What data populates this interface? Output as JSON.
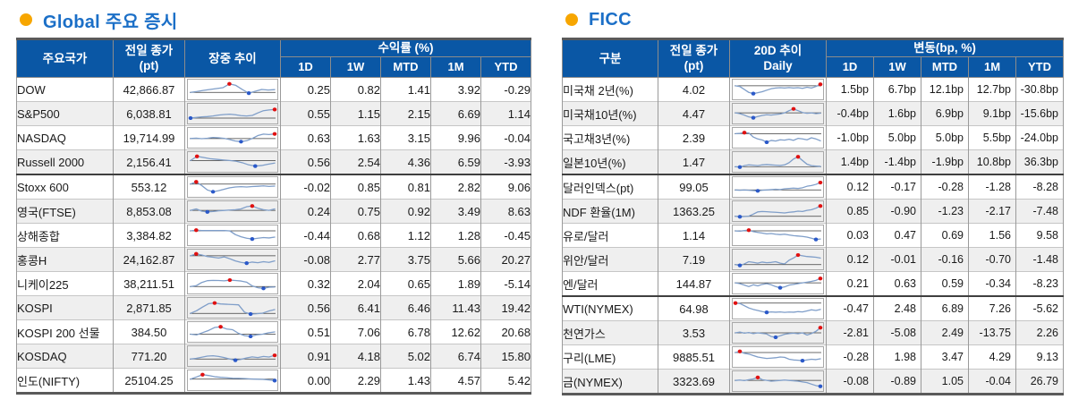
{
  "colors": {
    "header_bg": "#0A57A5",
    "title_text": "#1B6FC7",
    "bullet": "#F7A600",
    "negative": "#FE0000",
    "spark_line": "#7F9EC9",
    "spark_ref": "#3A3A3A",
    "marker_high": "#E01010",
    "marker_low": "#2B59C9"
  },
  "sections": [
    {
      "title": "Global 주요 증시",
      "header": {
        "col1": "주요국가",
        "col2_line1": "전일 종가",
        "col2_line2": "(pt)",
        "col3_line1": "장중 추이",
        "col3_line2": "",
        "group": "수익률 (%)",
        "cols": [
          "1D",
          "1W",
          "MTD",
          "1M",
          "YTD"
        ]
      },
      "rows": [
        {
          "name": "DOW",
          "close": "42,866.87",
          "values": [
            "0.25",
            "0.82",
            "1.41",
            "3.92",
            "-0.29"
          ],
          "sep": false,
          "spark": [
            30,
            36,
            44,
            50,
            56,
            62,
            88,
            78,
            50,
            25,
            38,
            50,
            46,
            49
          ]
        },
        {
          "name": "S&P500",
          "close": "6,038.81",
          "values": [
            "0.55",
            "1.15",
            "2.15",
            "6.69",
            "1.14"
          ],
          "sep": false,
          "spark": [
            20,
            24,
            28,
            30,
            34,
            40,
            44,
            46,
            42,
            36,
            34,
            38,
            55,
            70,
            75,
            78
          ]
        },
        {
          "name": "NASDAQ",
          "close": "19,714.99",
          "values": [
            "0.63",
            "1.63",
            "3.15",
            "9.96",
            "-0.04"
          ],
          "sep": false,
          "spark": [
            45,
            48,
            44,
            47,
            52,
            50,
            46,
            38,
            28,
            24,
            30,
            45,
            65,
            75,
            72,
            76
          ]
        },
        {
          "name": "Russell 2000",
          "close": "2,156.41",
          "values": [
            "0.56",
            "2.54",
            "4.36",
            "6.59",
            "-3.93"
          ],
          "sep": false,
          "spark": [
            60,
            88,
            80,
            72,
            68,
            64,
            60,
            55,
            45,
            30,
            22,
            26,
            35,
            42
          ]
        },
        {
          "name": "Stoxx 600",
          "close": "553.12",
          "values": [
            "-0.02",
            "0.85",
            "0.81",
            "2.82",
            "9.06"
          ],
          "sep": true,
          "spark": [
            70,
            85,
            60,
            30,
            18,
            25,
            35,
            45,
            50,
            52,
            50,
            53,
            55,
            58,
            54,
            56
          ]
        },
        {
          "name": "영국(FTSE)",
          "close": "8,853.08",
          "values": [
            "0.24",
            "0.75",
            "0.92",
            "3.49",
            "8.63"
          ],
          "sep": false,
          "spark": [
            55,
            65,
            50,
            45,
            48,
            52,
            55,
            58,
            60,
            65,
            80,
            85,
            70,
            60,
            55,
            65
          ]
        },
        {
          "name": "상해종합",
          "close": "3,384.82",
          "values": [
            "-0.44",
            "0.68",
            "1.12",
            "1.28",
            "-0.45"
          ],
          "sep": false,
          "spark": [
            80,
            85,
            82,
            83,
            82,
            83,
            82,
            80,
            55,
            40,
            30,
            25,
            30,
            35,
            32,
            38
          ]
        },
        {
          "name": "홍콩H",
          "close": "24,162.87",
          "values": [
            "-0.08",
            "2.77",
            "3.75",
            "5.66",
            "20.27"
          ],
          "sep": false,
          "spark": [
            75,
            88,
            80,
            70,
            65,
            60,
            68,
            55,
            40,
            30,
            25,
            32,
            28,
            35,
            30,
            40
          ]
        },
        {
          "name": "니케이225",
          "close": "38,211.51",
          "values": [
            "0.32",
            "2.04",
            "0.65",
            "1.89",
            "-5.14"
          ],
          "sep": false,
          "spark": [
            30,
            36,
            58,
            70,
            72,
            71,
            69,
            74,
            71,
            68,
            60,
            35,
            22,
            18,
            26,
            27
          ]
        },
        {
          "name": "KOSPI",
          "close": "2,871.85",
          "values": [
            "0.56",
            "6.41",
            "6.46",
            "11.43",
            "19.42"
          ],
          "sep": false,
          "spark": [
            12,
            30,
            55,
            78,
            82,
            76,
            74,
            72,
            70,
            20,
            8,
            10,
            14,
            28,
            38
          ]
        },
        {
          "name": "KOSPI 200 선물",
          "close": "384.50",
          "values": [
            "0.51",
            "7.06",
            "6.78",
            "12.62",
            "20.68"
          ],
          "sep": false,
          "spark": [
            35,
            30,
            45,
            60,
            80,
            85,
            70,
            65,
            40,
            25,
            20,
            30,
            35,
            45,
            50
          ]
        },
        {
          "name": "KOSDAQ",
          "close": "771.20",
          "values": [
            "0.91",
            "4.18",
            "5.02",
            "6.74",
            "15.80"
          ],
          "sep": false,
          "spark": [
            30,
            35,
            42,
            50,
            52,
            48,
            40,
            30,
            22,
            28,
            38,
            45,
            40,
            48,
            44,
            55
          ]
        },
        {
          "name": "인도(NIFTY)",
          "close": "25104.25",
          "values": [
            "0.00",
            "2.29",
            "1.43",
            "4.57",
            "5.42"
          ],
          "sep": false,
          "spark": [
            58,
            72,
            88,
            82,
            74,
            70,
            67,
            64,
            63,
            61,
            59,
            57,
            56,
            52,
            48
          ]
        }
      ]
    },
    {
      "title": "FICC",
      "header": {
        "col1": "구분",
        "col2_line1": "전일 종가",
        "col2_line2": "(pt)",
        "col3_line1": "20D 추이",
        "col3_line2": "Daily",
        "group": "변동(bp, %)",
        "cols": [
          "1D",
          "1W",
          "MTD",
          "1M",
          "YTD"
        ]
      },
      "rows": [
        {
          "name": "미국채 2년(%)",
          "close": "4.02",
          "values": [
            "1.5bp",
            "6.7bp",
            "12.1bp",
            "12.7bp",
            "-30.8bp"
          ],
          "sep": false,
          "spark": [
            75,
            70,
            50,
            30,
            22,
            28,
            35,
            45,
            55,
            60,
            62,
            60,
            63,
            60,
            62,
            58,
            65,
            60,
            70,
            85
          ]
        },
        {
          "name": "미국채10년(%)",
          "close": "4.47",
          "values": [
            "-0.4bp",
            "1.6bp",
            "6.9bp",
            "9.1bp",
            "-15.6bp"
          ],
          "sep": false,
          "spark": [
            55,
            50,
            40,
            28,
            22,
            30,
            38,
            42,
            40,
            44,
            48,
            55,
            70,
            82,
            70,
            58,
            52,
            55,
            50,
            53
          ]
        },
        {
          "name": "국고채3년(%)",
          "close": "2.39",
          "values": [
            "-1.0bp",
            "5.0bp",
            "5.0bp",
            "5.5bp",
            "-24.0bp"
          ],
          "sep": false,
          "spark": [
            78,
            80,
            85,
            83,
            55,
            42,
            35,
            20,
            32,
            28,
            36,
            34,
            40,
            33,
            46,
            42,
            36,
            50,
            42,
            30
          ]
        },
        {
          "name": "일본10년(%)",
          "close": "1.47",
          "values": [
            "1.4bp",
            "-1.4bp",
            "-1.9bp",
            "10.8bp",
            "36.3bp"
          ],
          "sep": false,
          "spark": [
            18,
            15,
            25,
            30,
            28,
            25,
            30,
            32,
            30,
            28,
            26,
            30,
            45,
            70,
            85,
            60,
            35,
            25,
            22,
            20
          ]
        },
        {
          "name": "달러인덱스(pt)",
          "close": "99.05",
          "values": [
            "0.12",
            "-0.17",
            "-0.28",
            "-1.28",
            "-8.28"
          ],
          "sep": true,
          "spark": [
            30,
            28,
            30,
            28,
            26,
            24,
            28,
            30,
            32,
            35,
            33,
            38,
            40,
            42,
            40,
            45,
            55,
            60,
            68,
            80
          ]
        },
        {
          "name": "NDF 환율(1M)",
          "close": "1363.25",
          "values": [
            "0.85",
            "-0.90",
            "-1.23",
            "-2.17",
            "-7.48"
          ],
          "sep": false,
          "spark": [
            15,
            12,
            14,
            16,
            30,
            45,
            48,
            46,
            44,
            42,
            40,
            38,
            42,
            45,
            50,
            48,
            55,
            60,
            70,
            85
          ]
        },
        {
          "name": "유로/달러",
          "close": "1.14",
          "values": [
            "0.03",
            "0.47",
            "0.69",
            "1.56",
            "9.58"
          ],
          "sep": false,
          "spark": [
            80,
            78,
            82,
            85,
            75,
            70,
            65,
            60,
            62,
            58,
            55,
            58,
            52,
            48,
            45,
            42,
            38,
            30,
            22,
            25
          ]
        },
        {
          "name": "위안/달러",
          "close": "7.19",
          "values": [
            "0.12",
            "-0.01",
            "-0.16",
            "-0.70",
            "-1.48"
          ],
          "sep": false,
          "spark": [
            15,
            10,
            20,
            35,
            30,
            25,
            32,
            28,
            30,
            35,
            25,
            20,
            45,
            60,
            80,
            75,
            70,
            68,
            65,
            60
          ]
        },
        {
          "name": "엔/달러",
          "close": "144.87",
          "values": [
            "0.21",
            "0.63",
            "0.59",
            "-0.34",
            "-8.23"
          ],
          "sep": false,
          "spark": [
            55,
            50,
            40,
            30,
            42,
            35,
            45,
            50,
            42,
            30,
            22,
            28,
            40,
            45,
            50,
            55,
            60,
            65,
            72,
            85
          ]
        },
        {
          "name": "WTI(NYMEX)",
          "close": "64.98",
          "values": [
            "-0.47",
            "2.48",
            "6.89",
            "7.26",
            "-5.62"
          ],
          "sep": true,
          "spark": [
            88,
            85,
            70,
            55,
            45,
            38,
            30,
            25,
            28,
            26,
            28,
            25,
            27,
            26,
            30,
            28,
            35,
            42,
            38,
            45
          ]
        },
        {
          "name": "천연가스",
          "close": "3.53",
          "values": [
            "-2.81",
            "-5.08",
            "2.49",
            "-13.75",
            "2.26"
          ],
          "sep": false,
          "spark": [
            50,
            55,
            48,
            52,
            45,
            50,
            46,
            42,
            25,
            20,
            30,
            40,
            45,
            48,
            44,
            50,
            35,
            45,
            60,
            85
          ]
        },
        {
          "name": "구리(LME)",
          "close": "9885.51",
          "values": [
            "-0.28",
            "1.98",
            "3.47",
            "4.29",
            "9.13"
          ],
          "sep": false,
          "spark": [
            80,
            88,
            75,
            70,
            60,
            50,
            45,
            40,
            42,
            45,
            50,
            48,
            35,
            30,
            28,
            25,
            30,
            35,
            32,
            38
          ]
        },
        {
          "name": "금(NYMEX)",
          "close": "3323.69",
          "values": [
            "-0.08",
            "-0.89",
            "1.05",
            "-0.04",
            "26.79"
          ],
          "sep": false,
          "spark": [
            55,
            58,
            54,
            60,
            65,
            75,
            60,
            55,
            50,
            52,
            55,
            58,
            55,
            52,
            50,
            45,
            40,
            30,
            20,
            15
          ]
        }
      ]
    }
  ]
}
